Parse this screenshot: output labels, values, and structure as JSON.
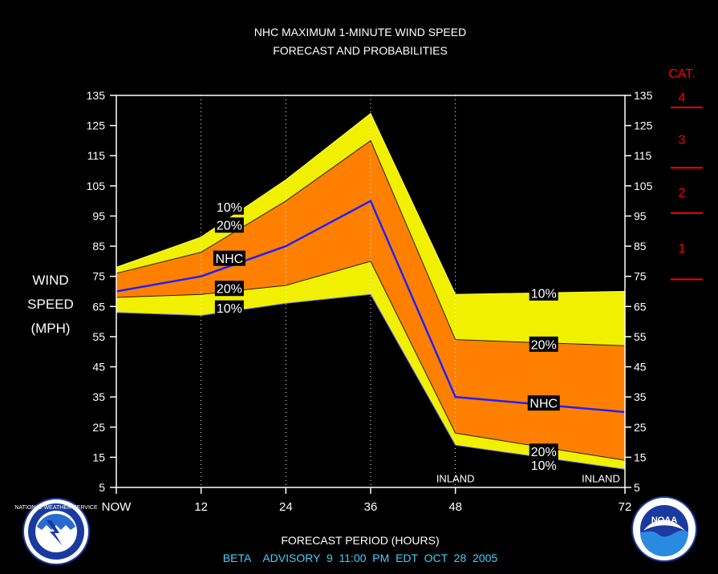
{
  "title_line1": "NHC MAXIMUM 1-MINUTE WIND SPEED",
  "title_line2": "FORECAST AND PROBABILITIES",
  "ylabel_lines": [
    "WIND",
    "SPEED",
    "(MPH)"
  ],
  "xlabel": "FORECAST PERIOD (HOURS)",
  "advisory": "BETA    ADVISORY  9  11:00  PM  EDT  OCT  28  2005",
  "category_header": "CAT.",
  "logos": {
    "left": "NATIONAL WEATHER SERVICE",
    "right": "NOAA"
  },
  "colors": {
    "background": "#000000",
    "band_10": "#f0f000",
    "band_20": "#ff8000",
    "nhc_line": "#2020ff",
    "category": "#ff0000",
    "advisory_text": "#40d0ff",
    "axis": "#ffffff"
  },
  "chart_data": {
    "type": "area",
    "x": [
      0,
      12,
      24,
      36,
      48,
      72
    ],
    "x_tick_labels": [
      "NOW",
      "12",
      "24",
      "36",
      "48",
      "72"
    ],
    "xlim": [
      0,
      72
    ],
    "ylim": [
      5,
      135
    ],
    "y_ticks": [
      5,
      15,
      25,
      35,
      45,
      55,
      65,
      75,
      85,
      95,
      105,
      115,
      125,
      135
    ],
    "grid": "vertical dotted at 12, 24, 36, 48",
    "series": [
      {
        "name": "10%",
        "upper": [
          78,
          88,
          107,
          129,
          69,
          70
        ],
        "lower": [
          63,
          62,
          66,
          69,
          19,
          11
        ]
      },
      {
        "name": "20%",
        "upper": [
          76,
          83,
          100,
          120,
          54,
          52
        ],
        "lower": [
          68,
          69,
          72,
          80,
          23,
          14
        ]
      },
      {
        "name": "NHC",
        "values": [
          70,
          75,
          85,
          100,
          35,
          30
        ]
      }
    ],
    "band_labels": [
      {
        "text": "10%",
        "x": 16,
        "y": 98
      },
      {
        "text": "20%",
        "x": 16,
        "y": 92
      },
      {
        "text": "NHC",
        "x": 16,
        "y": 81
      },
      {
        "text": "20%",
        "x": 16,
        "y": 71
      },
      {
        "text": "10%",
        "x": 16,
        "y": 64.5
      },
      {
        "text": "10%",
        "x": 60.5,
        "y": 69.5
      },
      {
        "text": "20%",
        "x": 60.5,
        "y": 52.5
      },
      {
        "text": "NHC",
        "x": 60.5,
        "y": 33
      },
      {
        "text": "20%",
        "x": 60.5,
        "y": 17
      },
      {
        "text": "10%",
        "x": 60.5,
        "y": 12.5
      }
    ],
    "annotations": [
      {
        "text": "INLAND",
        "x": 48,
        "y": 6.5
      },
      {
        "text": "INLAND",
        "x": 72,
        "y": 6.5
      }
    ],
    "categories": [
      {
        "label": "1",
        "from": 74,
        "to": 95
      },
      {
        "label": "2",
        "from": 96,
        "to": 110
      },
      {
        "label": "3",
        "from": 111,
        "to": 130
      },
      {
        "label": "4",
        "from": 131,
        "to": 155
      }
    ]
  }
}
